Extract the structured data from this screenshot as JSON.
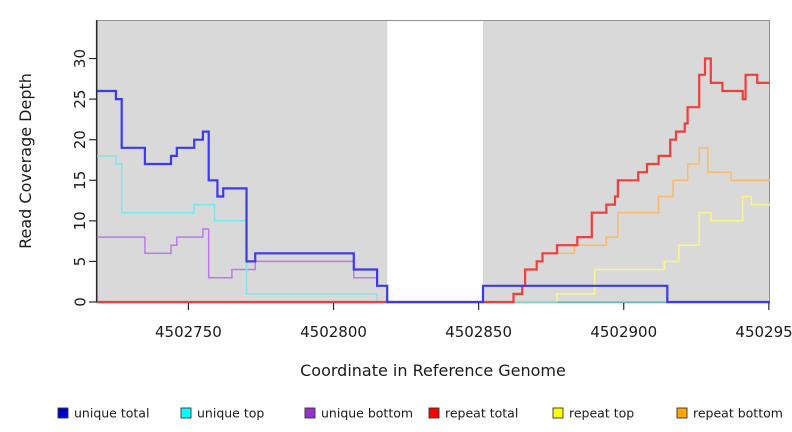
{
  "figure": {
    "xlabel": "Coordinate in Reference Genome",
    "ylabel": "Read Coverage Depth"
  },
  "legend": {
    "items": [
      {
        "label": "unique total",
        "color": "#0000cd"
      },
      {
        "label": "unique top",
        "color": "#00ffff"
      },
      {
        "label": "unique bottom",
        "color": "#9932cc"
      },
      {
        "label": "repeat total",
        "color": "#ff0000"
      },
      {
        "label": "repeat top",
        "color": "#ffff00"
      },
      {
        "label": "repeat bottom",
        "color": "#ffa500"
      }
    ]
  },
  "chart_data": {
    "type": "line",
    "step_interpolation": true,
    "title": "",
    "xlabel": "Coordinate in Reference Genome",
    "ylabel": "Read Coverage Depth",
    "xlim": [
      4502718.5,
      4502950.4
    ],
    "ylim": [
      0,
      34.75
    ],
    "x_ticks": [
      4502750,
      4502800,
      4502850,
      4502900,
      4502950
    ],
    "x_tick_labels": [
      "4502750",
      "4502800",
      "4502850",
      "4502900",
      "4502950"
    ],
    "y_ticks": [
      0,
      5,
      10,
      15,
      20,
      25,
      30
    ],
    "grid": false,
    "panel_color": "#d9d9d9",
    "panel_border_color": "#8f8f8f",
    "axis_color": "#2a2a2a",
    "text_color": "#1a1a1a",
    "masked_region": {
      "x_start": 4502818.5,
      "x_end": 4502851.5,
      "color": "#ffffff"
    },
    "series": [
      {
        "name": "repeat bottom",
        "line_color": "#f6bd72",
        "line_width": 1.6,
        "points": [
          [
            4502718.5,
            0
          ],
          [
            4502862,
            1
          ],
          [
            4502865,
            2
          ],
          [
            4502866,
            4
          ],
          [
            4502870,
            5
          ],
          [
            4502872,
            6
          ],
          [
            4502883,
            7
          ],
          [
            4502894,
            8
          ],
          [
            4502898,
            11
          ],
          [
            4502912,
            13
          ],
          [
            4502917,
            15
          ],
          [
            4502922,
            17
          ],
          [
            4502926,
            19
          ],
          [
            4502929,
            16
          ],
          [
            4502937,
            15
          ]
        ]
      },
      {
        "name": "repeat top",
        "line_color": "#f8f48c",
        "line_width": 1.6,
        "points": [
          [
            4502718.5,
            0
          ],
          [
            4502877,
            1
          ],
          [
            4502890,
            4
          ],
          [
            4502914,
            5
          ],
          [
            4502919,
            7
          ],
          [
            4502926,
            11
          ],
          [
            4502930,
            10
          ],
          [
            4502941,
            13
          ],
          [
            4502944,
            12
          ]
        ]
      },
      {
        "name": "unique bottom",
        "line_color": "#bd7ae6",
        "line_width": 1.5,
        "points": [
          [
            4502718.5,
            8
          ],
          [
            4502735,
            6
          ],
          [
            4502744,
            7
          ],
          [
            4502746,
            8
          ],
          [
            4502755,
            9
          ],
          [
            4502757,
            3
          ],
          [
            4502765,
            4
          ],
          [
            4502773,
            5
          ],
          [
            4502807,
            3
          ],
          [
            4502815,
            2
          ],
          [
            4502818.5,
            0
          ],
          [
            4502851.5,
            2
          ],
          [
            4502915,
            0
          ]
        ]
      },
      {
        "name": "unique top",
        "line_color": "#79e8ec",
        "line_width": 1.5,
        "points": [
          [
            4502718.5,
            18
          ],
          [
            4502725,
            17
          ],
          [
            4502727,
            11
          ],
          [
            4502752,
            12
          ],
          [
            4502759,
            10
          ],
          [
            4502770,
            1
          ],
          [
            4502815,
            0
          ]
        ]
      },
      {
        "name": "repeat total",
        "line_color": "#f23d3d",
        "line_width": 2.2,
        "points": [
          [
            4502718.5,
            0
          ],
          [
            4502862,
            1
          ],
          [
            4502865,
            2
          ],
          [
            4502866,
            4
          ],
          [
            4502870,
            5
          ],
          [
            4502872,
            6
          ],
          [
            4502877,
            7
          ],
          [
            4502884,
            8
          ],
          [
            4502889,
            11
          ],
          [
            4502894,
            12
          ],
          [
            4502897,
            13
          ],
          [
            4502898,
            15
          ],
          [
            4502905,
            16
          ],
          [
            4502908,
            17
          ],
          [
            4502912,
            18
          ],
          [
            4502916,
            20
          ],
          [
            4502918,
            21
          ],
          [
            4502921,
            22
          ],
          [
            4502922,
            24
          ],
          [
            4502926,
            28
          ],
          [
            4502928,
            30
          ],
          [
            4502930,
            27
          ],
          [
            4502934,
            26
          ],
          [
            4502941,
            25
          ],
          [
            4502942,
            28
          ],
          [
            4502946,
            27
          ]
        ]
      },
      {
        "name": "unique total",
        "line_color": "#3a3af2",
        "line_width": 2.2,
        "points": [
          [
            4502718.5,
            26
          ],
          [
            4502725,
            25
          ],
          [
            4502727,
            19
          ],
          [
            4502735,
            17
          ],
          [
            4502744,
            18
          ],
          [
            4502746,
            19
          ],
          [
            4502752,
            20
          ],
          [
            4502755,
            21
          ],
          [
            4502757,
            15
          ],
          [
            4502760,
            13
          ],
          [
            4502762,
            14
          ],
          [
            4502770,
            5
          ],
          [
            4502773,
            6
          ],
          [
            4502807,
            4
          ],
          [
            4502815,
            2
          ],
          [
            4502818.5,
            0
          ],
          [
            4502851.5,
            2
          ],
          [
            4502915,
            0
          ]
        ]
      }
    ]
  }
}
